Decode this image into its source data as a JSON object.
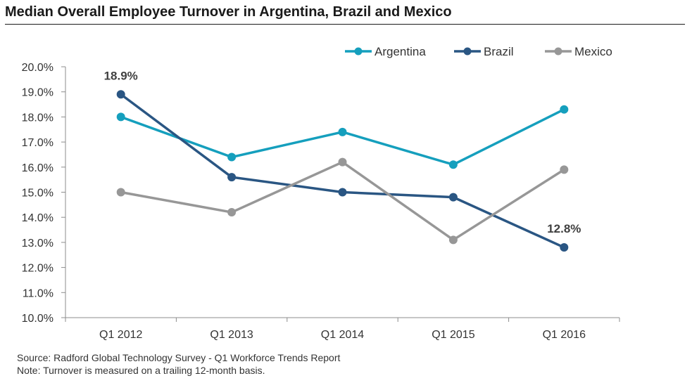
{
  "title": "Median Overall Employee Turnover in Argentina, Brazil and Mexico",
  "source_note": "Source: Radford Global Technology Survey - Q1 Workforce Trends Report",
  "turnover_note": "Note: Turnover is measured on a trailing 12-month basis.",
  "chart_data": {
    "type": "line",
    "categories": [
      "Q1 2012",
      "Q1 2013",
      "Q1 2014",
      "Q1 2015",
      "Q1 2016"
    ],
    "ylim": [
      10.0,
      20.0
    ],
    "y_ticks": [
      "10.0%",
      "11.0%",
      "12.0%",
      "13.0%",
      "14.0%",
      "15.0%",
      "16.0%",
      "17.0%",
      "18.0%",
      "19.0%",
      "20.0%"
    ],
    "y_tick_values": [
      10,
      11,
      12,
      13,
      14,
      15,
      16,
      17,
      18,
      19,
      20
    ],
    "grid": false,
    "legend_position": "top-right",
    "series": [
      {
        "name": "Argentina",
        "color": "#159fbd",
        "values": [
          18.0,
          16.4,
          17.4,
          16.1,
          18.3
        ]
      },
      {
        "name": "Brazil",
        "color": "#2a5683",
        "values": [
          18.9,
          15.6,
          15.0,
          14.8,
          12.8
        ]
      },
      {
        "name": "Mexico",
        "color": "#979797",
        "values": [
          15.0,
          14.2,
          16.2,
          13.1,
          15.9
        ]
      }
    ],
    "annotations": [
      {
        "series": "Brazil",
        "index": 0,
        "text": "18.9%"
      },
      {
        "series": "Brazil",
        "index": 4,
        "text": "12.8%"
      }
    ]
  }
}
